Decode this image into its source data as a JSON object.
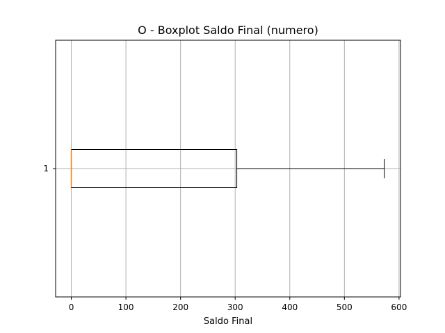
{
  "chart_data": {
    "type": "boxplot",
    "orientation": "horizontal",
    "title": "O - Boxplot Saldo Final (numero)",
    "xlabel": "Saldo Final",
    "ylabel": "",
    "xlim": [
      -28.7,
      602.7
    ],
    "xticks": [
      0,
      100,
      200,
      300,
      400,
      500,
      600
    ],
    "yticks": [
      "1"
    ],
    "grid": true,
    "series": [
      {
        "category": "1",
        "whisker_low": 0,
        "q1": 0,
        "median": 0,
        "q3": 303,
        "whisker_high": 573
      }
    ],
    "colors": {
      "box": "#000000",
      "median": "#ff7f0e",
      "grid": "#b0b0b0"
    }
  }
}
